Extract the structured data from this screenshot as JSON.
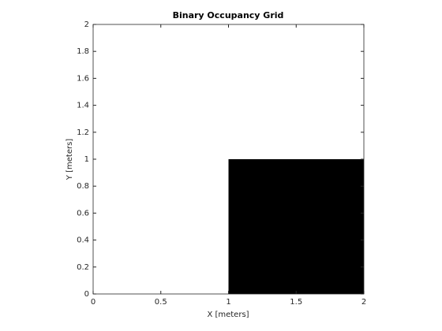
{
  "chart_data": {
    "type": "occupancy",
    "title": "Binary Occupancy Grid",
    "xlabel": "X [meters]",
    "ylabel": "Y [meters]",
    "values": [
      [
        0,
        0
      ],
      [
        0,
        1
      ]
    ],
    "colors": [
      "#ffffff",
      "#000000"
    ],
    "xlim": [
      0,
      2
    ],
    "ylim": [
      0,
      2
    ],
    "xticks": [
      0,
      0.5,
      1,
      1.5,
      2
    ],
    "yticks": [
      0,
      0.2,
      0.4,
      0.6,
      0.8,
      1,
      1.2,
      1.4,
      1.6,
      1.8,
      2
    ]
  }
}
